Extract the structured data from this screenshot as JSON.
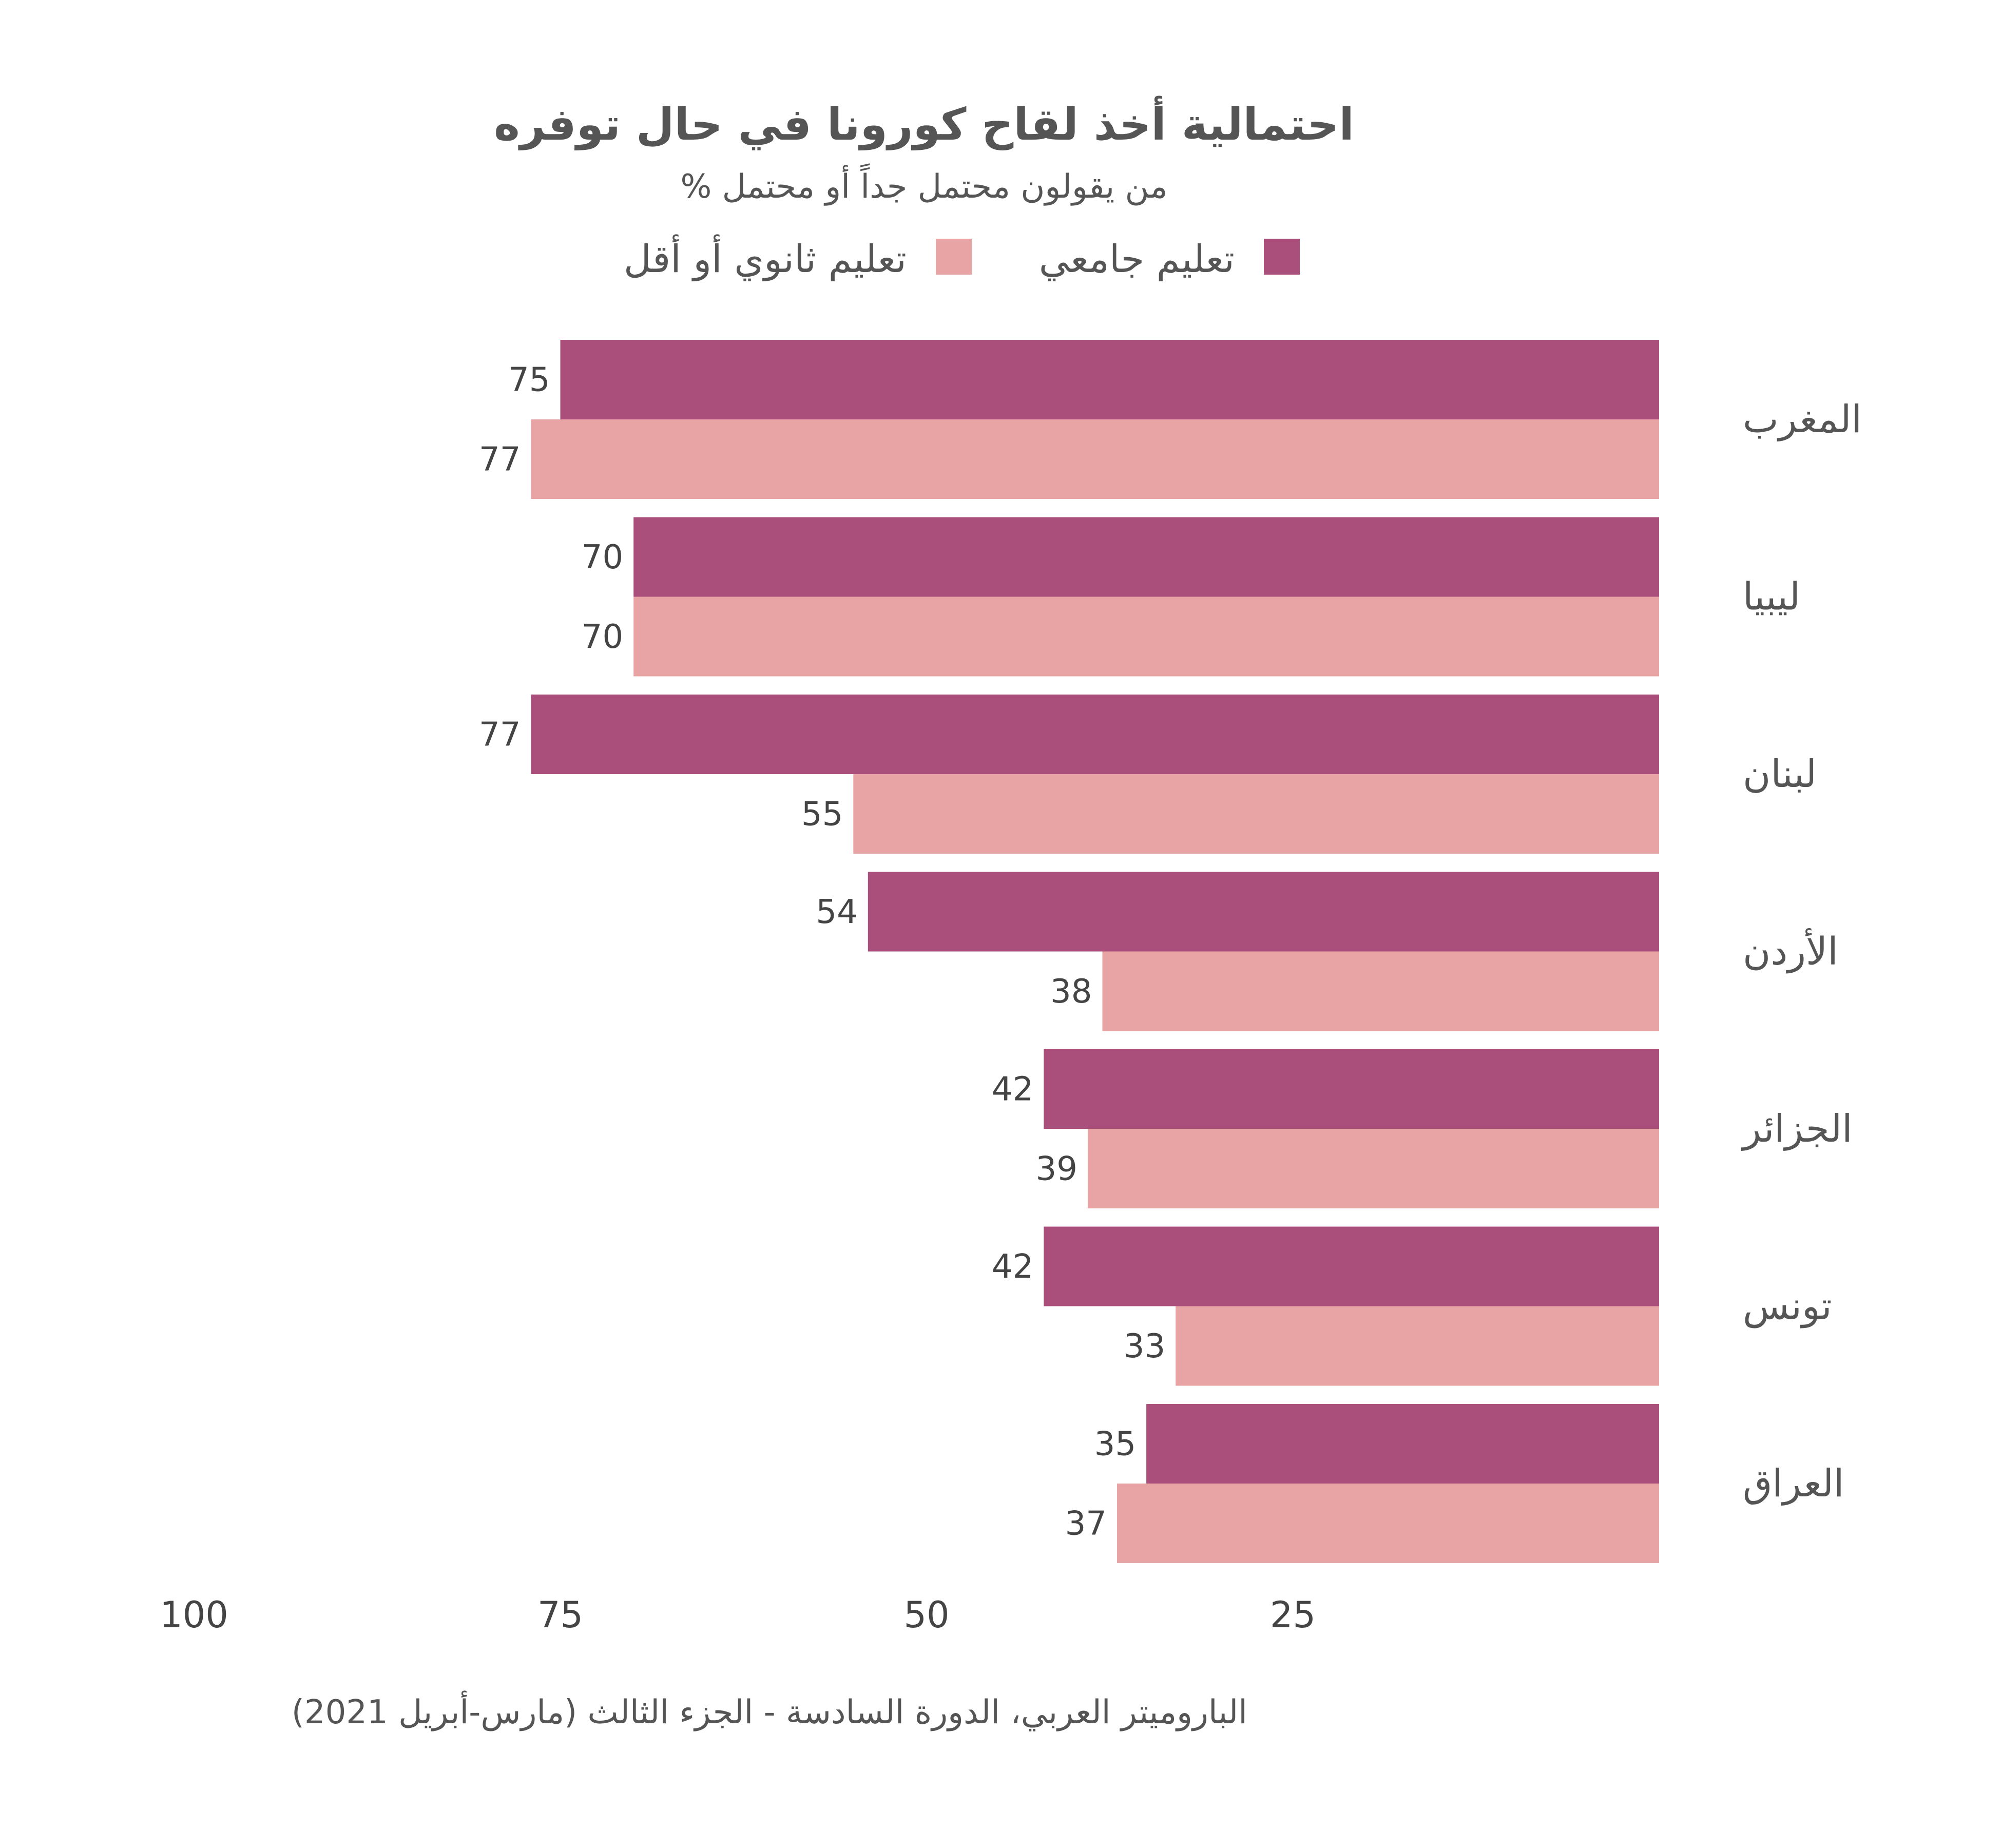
{
  "chart_data": {
    "type": "bar",
    "orientation": "horizontal",
    "direction": "rtl",
    "title": "احتمالية أخذ لقاح كورونا في حال توفره",
    "subtitle": "% من يقولون محتمل جداً أو محتمل",
    "categories": [
      "المغرب",
      "ليبيا",
      "لبنان",
      "الأردن",
      "الجزائر",
      "تونس",
      "العراق"
    ],
    "series": [
      {
        "name": "تعليم جامعي",
        "color": "#aa4f7c",
        "values": [
          75,
          70,
          77,
          54,
          42,
          42,
          35
        ]
      },
      {
        "name": "تعليم ثانوي أو أقل",
        "color": "#e8a4a4",
        "values": [
          77,
          70,
          55,
          38,
          39,
          33,
          37
        ]
      }
    ],
    "xticks": [
      100,
      75,
      50,
      25
    ],
    "xlim": [
      0,
      100
    ],
    "grid": false,
    "legend_position": "top",
    "source": "الباروميتر العربي، الدورة السادسة - الجزء الثالث (مارس-أبريل 2021)"
  }
}
